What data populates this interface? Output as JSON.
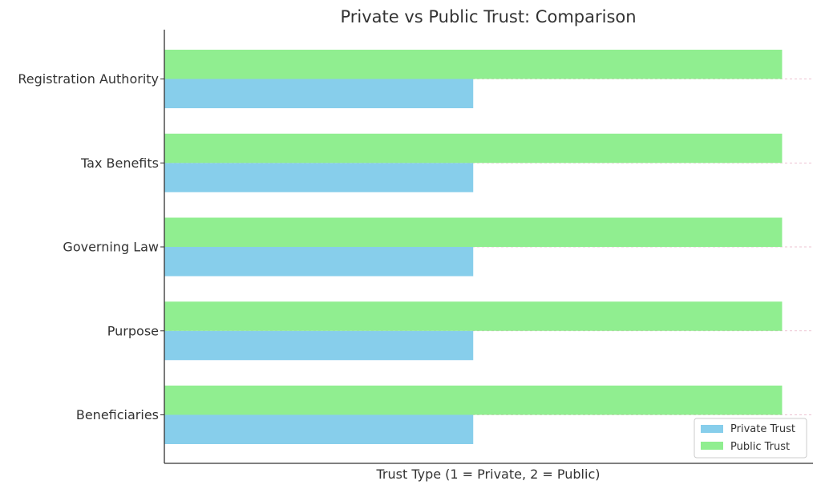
{
  "chart_data": {
    "type": "bar",
    "orientation": "horizontal",
    "title": "Private vs Public Trust: Comparison",
    "xlabel": "Trust Type (1 = Private, 2 = Public)",
    "ylabel": "",
    "categories": [
      "Beneficiaries",
      "Purpose",
      "Governing Law",
      "Tax Benefits",
      "Registration Authority"
    ],
    "series": [
      {
        "name": "Private Trust",
        "values": [
          1,
          1,
          1,
          1,
          1
        ],
        "color": "#87CEEB"
      },
      {
        "name": "Public Trust",
        "values": [
          2,
          2,
          2,
          2,
          2
        ],
        "color": "#90EE90"
      }
    ],
    "xlim": [
      0,
      2.1
    ],
    "x_tick_labels_visible": false,
    "grid": "horizontal-dashed",
    "legend_position": "lower-right"
  }
}
